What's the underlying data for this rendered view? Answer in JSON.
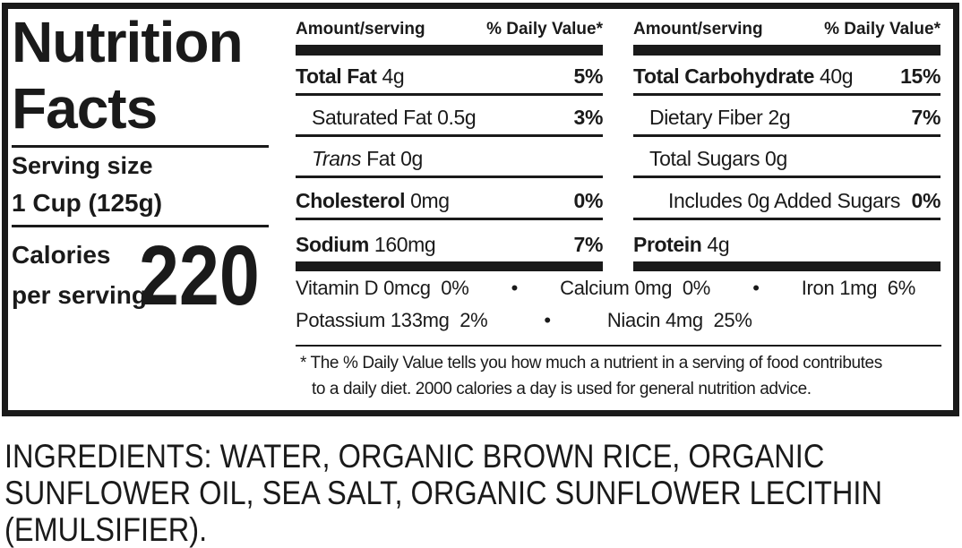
{
  "label": {
    "title_line1": "Nutrition",
    "title_line2": "Facts",
    "serving_size_label": "Serving size",
    "serving_size_value": "1 Cup (125g)",
    "calories_label_line1": "Calories",
    "calories_label_line2": "per serving",
    "calories_value": "220"
  },
  "columns": [
    {
      "header": {
        "amount": "Amount/serving",
        "dv": "% Daily Value*"
      },
      "rows": [
        {
          "label": "Total Fat",
          "value": " 4g",
          "dv": "5%"
        },
        {
          "label": "Saturated Fat",
          "value": " 0.5g",
          "dv": "3%"
        },
        {
          "label_italic": "Trans",
          "label": " Fat",
          "value": " 0g",
          "dv": ""
        },
        {
          "label": "Cholesterol",
          "value": " 0mg",
          "dv": "0%"
        },
        {
          "label": "Sodium",
          "value": " 160mg",
          "dv": "7%"
        }
      ]
    },
    {
      "header": {
        "amount": "Amount/serving",
        "dv": "% Daily Value*"
      },
      "rows": [
        {
          "label": "Total Carbohydrate",
          "value": " 40g",
          "dv": "15%"
        },
        {
          "label": "Dietary Fiber",
          "value": " 2g",
          "dv": "7%"
        },
        {
          "label": "Total Sugars",
          "value": " 0g",
          "dv": ""
        },
        {
          "label": "Includes 0g Added Sugars",
          "value": "",
          "dv": "0%"
        },
        {
          "label": "Protein",
          "value": " 4g",
          "dv": ""
        }
      ]
    }
  ],
  "vitamins": {
    "line1": [
      "Vitamin D 0mcg  0%",
      "•",
      "Calcium 0mg  0%",
      "•",
      "Iron 1mg  6%"
    ],
    "line2": [
      "Potassium 133mg  2%",
      "•",
      "Niacin 4mg  25%"
    ]
  },
  "footnote": {
    "line1": "* The % Daily Value  tells you how much a nutrient in a serving of food contributes",
    "line2": "to a daily diet. 2000 calories a day is used for general nutrition advice."
  },
  "ingredients": {
    "lines": [
      "INGREDIENTS: WATER, ORGANIC BROWN RICE, ORGANIC",
      "SUNFLOWER OIL, SEA SALT, ORGANIC SUNFLOWER LECITHIN",
      "(EMULSIFIER)."
    ]
  },
  "colors": {
    "text": "#1a1a1a",
    "background": "#ffffff"
  }
}
